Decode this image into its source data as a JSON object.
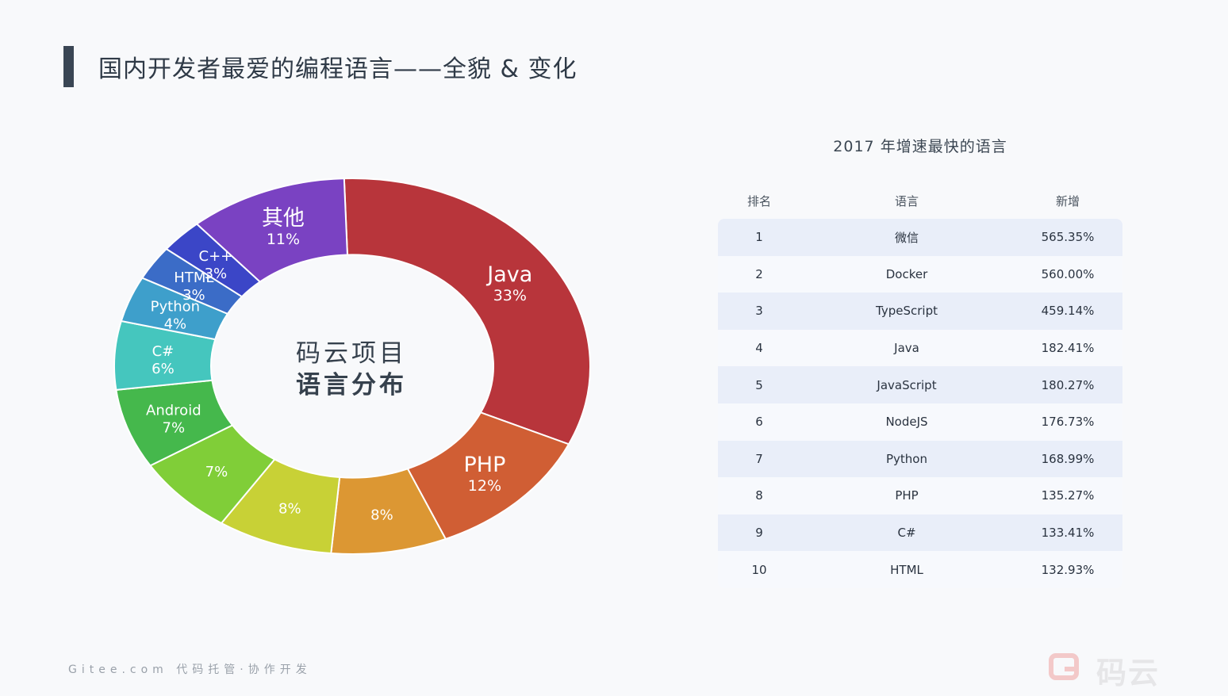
{
  "page": {
    "title": "国内开发者最爱的编程语言——全貌 & 变化",
    "footer": "Gitee.com 代码托管·协作开发",
    "logo_text": "码云"
  },
  "donut": {
    "center_line1": "码云项目",
    "center_line2": "语言分布"
  },
  "chart_data": [
    {
      "type": "pie",
      "title": "",
      "center_label": "码云项目 语言分布",
      "slices": [
        {
          "label": "Java",
          "value": 33,
          "value_label": "33%",
          "color": "#b8353b"
        },
        {
          "label": "PHP",
          "value": 12,
          "value_label": "12%",
          "color": "#d05e34"
        },
        {
          "label": "",
          "value": 8,
          "value_label": "8%",
          "color": "#dc9733"
        },
        {
          "label": "",
          "value": 8,
          "value_label": "8%",
          "color": "#c8d136"
        },
        {
          "label": "",
          "value": 7,
          "value_label": "7%",
          "color": "#80ce38"
        },
        {
          "label": "Android",
          "value": 7,
          "value_label": "7%",
          "color": "#45b84c"
        },
        {
          "label": "C#",
          "value": 6,
          "value_label": "6%",
          "color": "#45c6be"
        },
        {
          "label": "Python",
          "value": 4,
          "value_label": "4%",
          "color": "#3e9fcb"
        },
        {
          "label": "HTML",
          "value": 3,
          "value_label": "3%",
          "color": "#3b6cc7"
        },
        {
          "label": "C++",
          "value": 3,
          "value_label": "3%",
          "color": "#3b46c7"
        },
        {
          "label": "其他",
          "value": 11,
          "value_label": "11%",
          "color": "#7a42c2"
        }
      ]
    },
    {
      "type": "table",
      "title": "2017 年增速最快的语言",
      "columns": [
        "排名",
        "语言",
        "新增"
      ],
      "rows": [
        [
          "1",
          "微信",
          "565.35%"
        ],
        [
          "2",
          "Docker",
          "560.00%"
        ],
        [
          "3",
          "TypeScript",
          "459.14%"
        ],
        [
          "4",
          "Java",
          "182.41%"
        ],
        [
          "5",
          "JavaScript",
          "180.27%"
        ],
        [
          "6",
          "NodeJS",
          "176.73%"
        ],
        [
          "7",
          "Python",
          "168.99%"
        ],
        [
          "8",
          "PHP",
          "135.27%"
        ],
        [
          "9",
          "C#",
          "133.41%"
        ],
        [
          "10",
          "HTML",
          "132.93%"
        ]
      ]
    }
  ]
}
